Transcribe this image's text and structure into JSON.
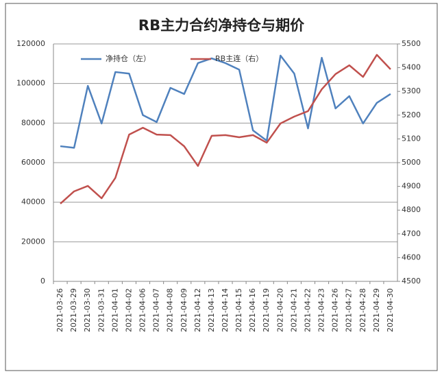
{
  "chart_data": {
    "type": "line",
    "title": "RB主力合约净持仓与期价",
    "categories": [
      "2021-03-26",
      "2021-03-29",
      "2021-03-30",
      "2021-03-31",
      "2021-04-01",
      "2021-04-02",
      "2021-04-06",
      "2021-04-07",
      "2021-04-08",
      "2021-04-09",
      "2021-04-12",
      "2021-04-13",
      "2021-04-14",
      "2021-04-15",
      "2021-04-16",
      "2021-04-19",
      "2021-04-20",
      "2021-04-21",
      "2021-04-22",
      "2021-04-23",
      "2021-04-26",
      "2021-04-27",
      "2021-04-28",
      "2021-04-29",
      "2021-04-30"
    ],
    "series": [
      {
        "name": "净持仓（左）",
        "color": "#4f81bd",
        "values": [
          68300,
          67500,
          98800,
          79800,
          105800,
          105000,
          84000,
          80500,
          97800,
          94700,
          110300,
          112700,
          110300,
          107000,
          76300,
          71100,
          114100,
          105000,
          77300,
          113000,
          87400,
          93600,
          79800,
          90200,
          94700
        ]
      },
      {
        "name": "RB主连（右）",
        "color": "#c0504d",
        "axis": "y2",
        "values": [
          4827,
          4879,
          4902,
          4850,
          4936,
          5118,
          5147,
          5118,
          5116,
          5069,
          4986,
          5113,
          5116,
          5107,
          5116,
          5084,
          5165,
          5194,
          5217,
          5309,
          5373,
          5410,
          5361,
          5454,
          5393
        ]
      }
    ],
    "ylim": [
      0,
      120000
    ],
    "yticks": [
      0,
      20000,
      40000,
      60000,
      80000,
      100000,
      120000
    ],
    "y2lim": [
      4500,
      5500
    ],
    "y2ticks": [
      4500,
      4600,
      4700,
      4800,
      4900,
      5000,
      5100,
      5200,
      5300,
      5400,
      5500
    ],
    "grid": true,
    "legend": "top"
  }
}
